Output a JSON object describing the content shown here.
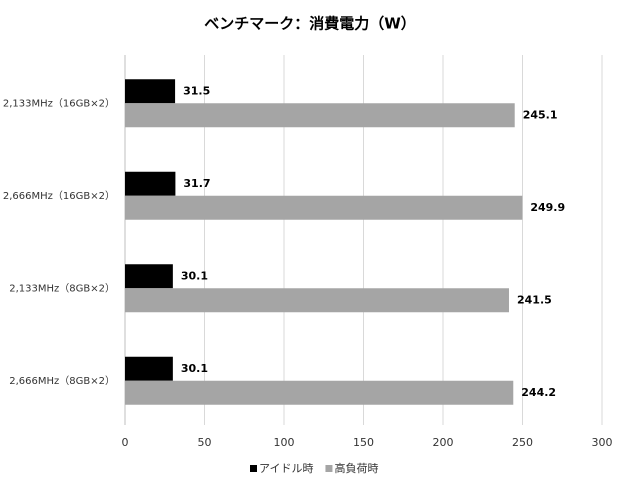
{
  "chart_data": {
    "type": "bar",
    "orientation": "horizontal",
    "title": "ベンチマーク：消費電力（W）",
    "categories": [
      "2,133MHz（16GB×2）",
      "2,666MHz（16GB×2）",
      "2,133MHz（8GB×2）",
      "2,666MHz（8GB×2）"
    ],
    "series": [
      {
        "name": "アイドル時",
        "color": "#000000",
        "values": [
          31.5,
          31.7,
          30.1,
          30.1
        ]
      },
      {
        "name": "高負荷時",
        "color": "#a5a5a5",
        "values": [
          245.1,
          249.9,
          241.5,
          244.2
        ]
      }
    ],
    "xlim": [
      0,
      300
    ],
    "xticks": [
      0,
      50,
      100,
      150,
      200,
      250,
      300
    ],
    "grid": true,
    "legend": "bottom"
  }
}
